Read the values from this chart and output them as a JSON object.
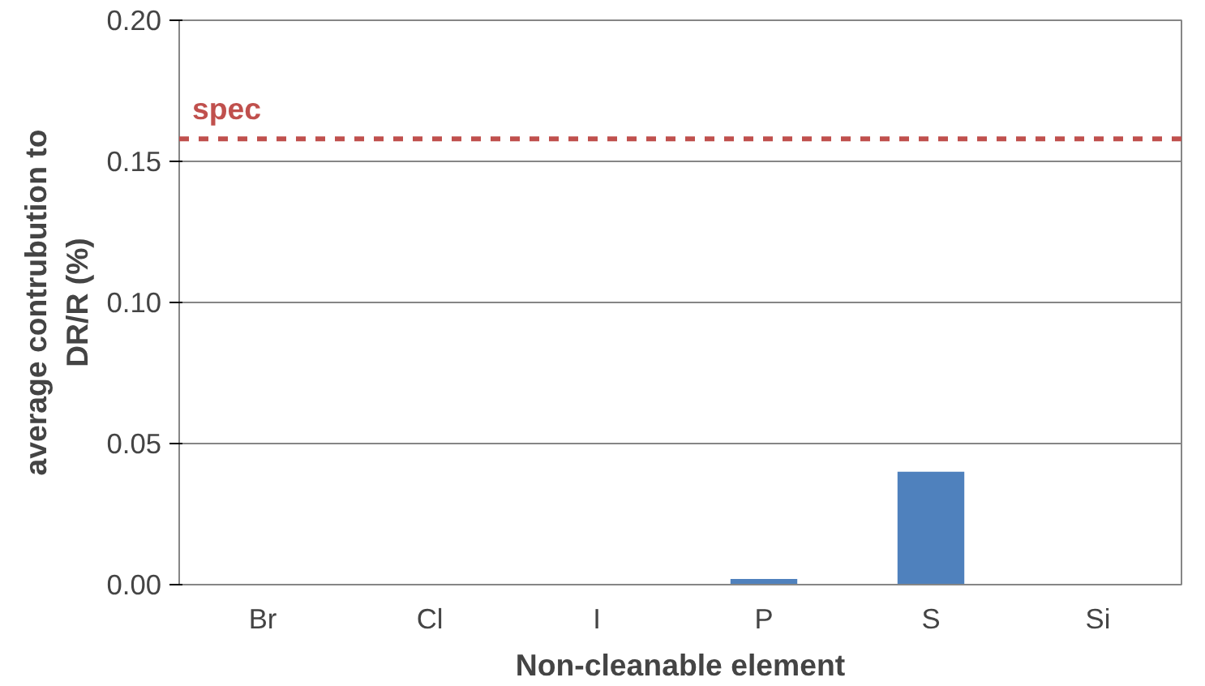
{
  "chart_data": {
    "type": "bar",
    "xlabel": "Non-cleanable element",
    "ylabel": "average contrubution to\nDR/R (%)",
    "categories": [
      "Br",
      "Cl",
      "I",
      "P",
      "S",
      "Si"
    ],
    "values": [
      0,
      0,
      0,
      0.002,
      0.04,
      0
    ],
    "color": "#4f81bd",
    "ylim": [
      0,
      0.2
    ],
    "yticks": [
      {
        "value": 0,
        "label": "0.00"
      },
      {
        "value": 0.05,
        "label": "0.05"
      },
      {
        "value": 0.1,
        "label": "0.10"
      },
      {
        "value": 0.15,
        "label": "0.15"
      },
      {
        "value": 0.2,
        "label": "0.20"
      }
    ],
    "grid": "y",
    "ref_lines": [
      {
        "axis": "y",
        "value": 0.158,
        "label": "spec",
        "color": "#c0504d",
        "line_style": "dashed"
      }
    ]
  }
}
